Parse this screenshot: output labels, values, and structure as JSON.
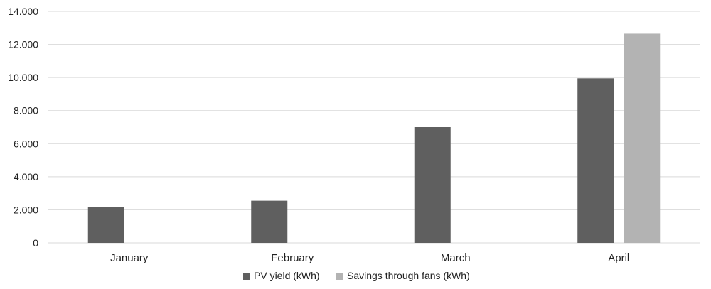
{
  "chart_data": {
    "type": "bar",
    "title": "",
    "xlabel": "",
    "ylabel": "",
    "categories": [
      "January",
      "February",
      "March",
      "April"
    ],
    "series": [
      {
        "name": "PV yield (kWh)",
        "values": [
          2150,
          2550,
          7000,
          9950
        ],
        "color": "#5f5f5f"
      },
      {
        "name": "Savings through fans (kWh)",
        "values": [
          null,
          null,
          null,
          12650
        ],
        "color": "#b3b3b3"
      }
    ],
    "ylim": [
      0,
      14000
    ],
    "yticks": [
      0,
      2000,
      4000,
      6000,
      8000,
      10000,
      12000,
      14000
    ],
    "ytick_labels": [
      "0",
      "2.000",
      "4.000",
      "6.000",
      "8.000",
      "10.000",
      "12.000",
      "14.000"
    ],
    "grid": true,
    "legend_position": "bottom-center"
  }
}
